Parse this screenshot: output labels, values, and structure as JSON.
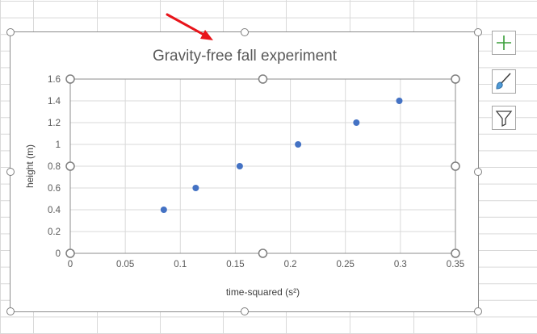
{
  "chart_data": {
    "type": "scatter",
    "title": "Gravity-free fall experiment",
    "xlabel": "time-squared (s²)",
    "ylabel": "height (m)",
    "xlim": [
      0,
      0.35
    ],
    "ylim": [
      0,
      1.6
    ],
    "x_ticks": [
      0,
      0.05,
      0.1,
      0.15,
      0.2,
      0.25,
      0.3,
      0.35
    ],
    "x_tick_labels": [
      "0",
      "0.05",
      "0.1",
      "0.15",
      "0.2",
      "0.25",
      "0.3",
      "0.35"
    ],
    "y_ticks": [
      0,
      0.2,
      0.4,
      0.6,
      0.8,
      1.0,
      1.2,
      1.4,
      1.6
    ],
    "y_tick_labels": [
      "0",
      "0.2",
      "0.4",
      "0.6",
      "0.8",
      "1",
      "1.2",
      "1.4",
      "1.6"
    ],
    "grid": true,
    "series": [
      {
        "color": "#4472C4",
        "points": [
          {
            "x": 0.085,
            "y": 0.4
          },
          {
            "x": 0.114,
            "y": 0.6
          },
          {
            "x": 0.154,
            "y": 0.8
          },
          {
            "x": 0.207,
            "y": 1.0
          },
          {
            "x": 0.26,
            "y": 1.2
          },
          {
            "x": 0.299,
            "y": 1.4
          }
        ]
      }
    ]
  },
  "side_buttons": {
    "chart_elements": "plus-icon",
    "chart_styles": "brush-icon",
    "chart_filters": "filter-icon"
  },
  "colors": {
    "accent_green": "#3a9e3a",
    "annotation_arrow": "#e8141a",
    "gridline": "#d9d9d9"
  }
}
